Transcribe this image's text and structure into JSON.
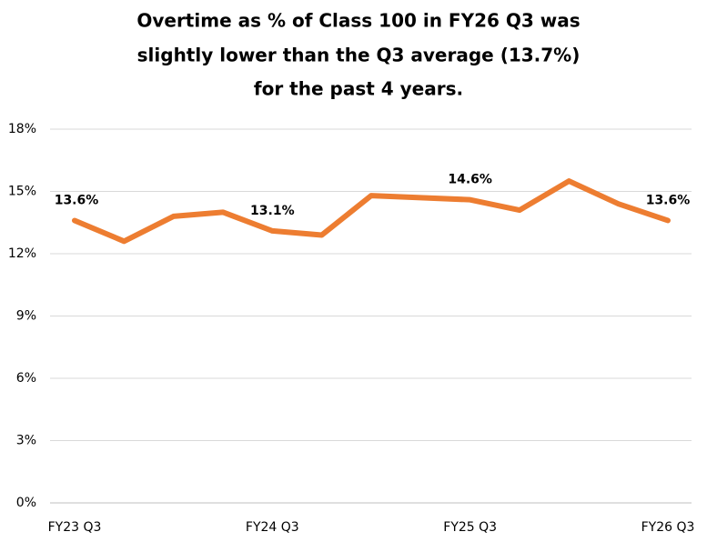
{
  "chart_data": {
    "type": "line",
    "title": [
      "Overtime as % of Class 100 in FY26 Q3 was",
      "slightly lower than the Q3 average (13.7%)",
      "for the past 4 years."
    ],
    "categories": [
      "FY23 Q3",
      null,
      null,
      null,
      "FY24 Q3",
      null,
      null,
      null,
      "FY25 Q3",
      null,
      null,
      null,
      "FY26 Q3"
    ],
    "values": [
      13.6,
      12.6,
      13.8,
      14.0,
      13.1,
      12.9,
      14.8,
      14.7,
      14.6,
      14.1,
      15.5,
      14.4,
      13.6
    ],
    "value_labels": [
      "13.6%",
      null,
      null,
      null,
      "13.1%",
      null,
      null,
      null,
      "14.6%",
      null,
      null,
      null,
      "13.6%"
    ],
    "color": "#ED7D31",
    "ylim": [
      0,
      18
    ],
    "yticks": [
      {
        "value": 0,
        "label": "0%"
      },
      {
        "value": 3,
        "label": "3%"
      },
      {
        "value": 6,
        "label": "6%"
      },
      {
        "value": 9,
        "label": "9%"
      },
      {
        "value": 12,
        "label": "12%"
      },
      {
        "value": 15,
        "label": "15%"
      },
      {
        "value": 18,
        "label": "18%"
      }
    ],
    "grid": true
  }
}
